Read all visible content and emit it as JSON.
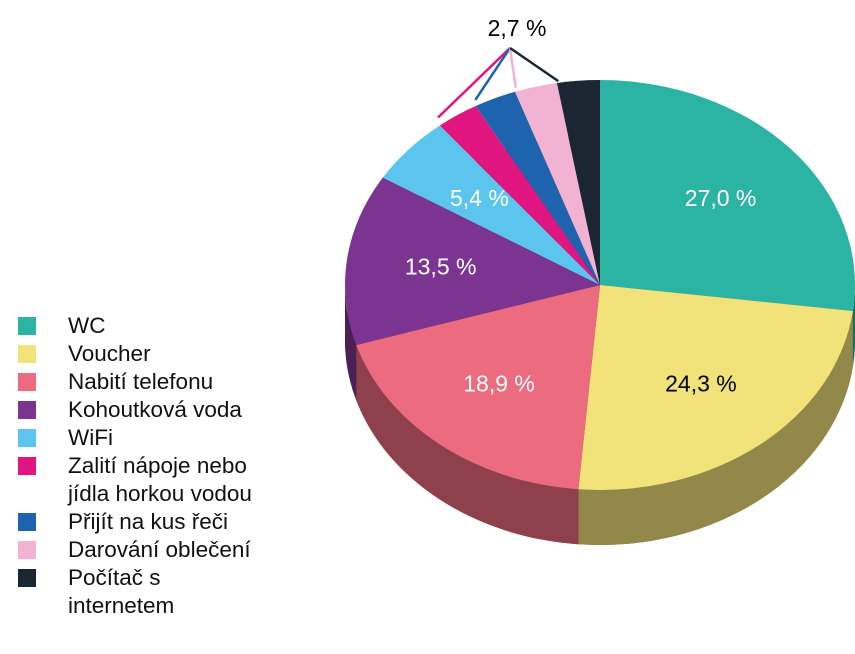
{
  "chart_data": {
    "type": "pie",
    "categories": [
      "WC",
      "Voucher",
      "Nabití telefonu",
      "Kohoutková voda",
      "WiFi",
      "Zalití nápoje nebo jídla horkou vodou",
      "Přijít na kus řeči",
      "Darování oblečení",
      "Počítač s internetem"
    ],
    "values": [
      27.0,
      24.3,
      18.9,
      13.5,
      5.4,
      2.7,
      2.7,
      2.7,
      2.7
    ],
    "value_labels": [
      "27,0 %",
      "24,3 %",
      "18,9 %",
      "13,5 %",
      "5,4 %",
      "2,7 %",
      null,
      null,
      null
    ],
    "colors": [
      "#2bb3a3",
      "#f2e27a",
      "#ec6b7e",
      "#7b3590",
      "#5bc5ef",
      "#e0157f",
      "#1e63ad",
      "#f2b3d2",
      "#1b2633"
    ],
    "label_colors": [
      "#ffffff",
      "#000000",
      "#ffffff",
      "#ffffff",
      "#ffffff",
      "#000000",
      "#ffffff",
      "#ffffff",
      "#ffffff"
    ],
    "legend": "bottom-left"
  }
}
